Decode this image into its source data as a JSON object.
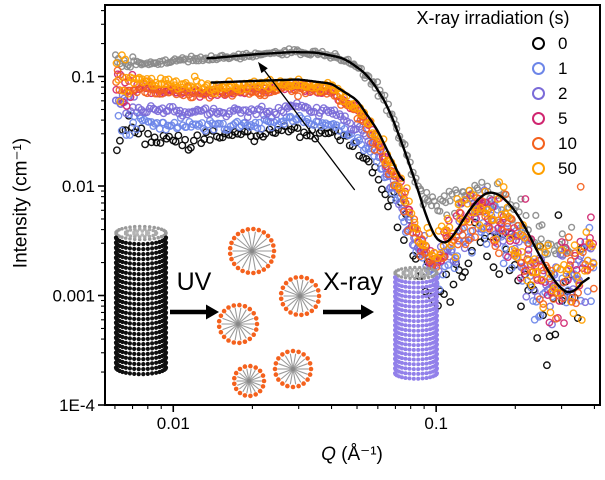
{
  "figure": {
    "xlabel_q": "Q",
    "xlabel_unit": " (Å⁻¹)",
    "ylabel": "Intensity (cm⁻¹)"
  },
  "legend": {
    "title": "X-ray irradiation (s)",
    "entries": [
      {
        "label": "0",
        "color": "#000000"
      },
      {
        "label": "1",
        "color": "#6d86e8"
      },
      {
        "label": "2",
        "color": "#7b6bd8"
      },
      {
        "label": "5",
        "color": "#d02670"
      },
      {
        "label": "10",
        "color": "#f4611d"
      },
      {
        "label": "50",
        "color": "#ffa000"
      }
    ]
  },
  "inset": {
    "uv_label": "UV",
    "xray_label": "X-ray",
    "icons": [
      "nanotube-black",
      "uv-arrow",
      "micelles",
      "xray-arrow",
      "nanotube-purple"
    ]
  },
  "chart_data": {
    "type": "scatter",
    "title": "",
    "xlabel": "Q (Å⁻¹)",
    "ylabel": "Intensity (cm⁻¹)",
    "x_scale": "log",
    "y_scale": "log",
    "xlim": [
      0.0055,
      0.42
    ],
    "ylim": [
      0.0001,
      0.45
    ],
    "grid": false,
    "legend_position": "top-right",
    "x_ticks": [
      {
        "value": 0.01,
        "label": "0.01"
      },
      {
        "value": 0.1,
        "label": "0.1"
      }
    ],
    "y_ticks": [
      {
        "value": 0.1,
        "label": "0.1"
      },
      {
        "value": 0.01,
        "label": "0.01"
      },
      {
        "value": 0.001,
        "label": "0.001"
      },
      {
        "value": 0.0001,
        "label": "1E-4"
      }
    ],
    "series": [
      {
        "name": "gray",
        "label": "",
        "color": "#8a8a8a",
        "r": 2.9,
        "n": 280,
        "noise": 0.6,
        "anchors": [
          [
            0.006,
            0.13
          ],
          [
            0.008,
            0.133
          ],
          [
            0.01,
            0.137
          ],
          [
            0.015,
            0.148
          ],
          [
            0.02,
            0.158
          ],
          [
            0.025,
            0.165
          ],
          [
            0.03,
            0.168
          ],
          [
            0.035,
            0.165
          ],
          [
            0.04,
            0.155
          ],
          [
            0.05,
            0.125
          ],
          [
            0.06,
            0.08
          ],
          [
            0.07,
            0.038
          ],
          [
            0.08,
            0.015
          ],
          [
            0.09,
            0.0075
          ],
          [
            0.1,
            0.007
          ],
          [
            0.11,
            0.0075
          ],
          [
            0.13,
            0.0085
          ],
          [
            0.15,
            0.0088
          ],
          [
            0.17,
            0.008
          ],
          [
            0.2,
            0.0058
          ],
          [
            0.24,
            0.0035
          ],
          [
            0.28,
            0.0028
          ],
          [
            0.33,
            0.0035
          ]
        ]
      },
      {
        "name": "0",
        "label": "0",
        "color": "#000000",
        "r": 3.2,
        "n": 150,
        "noise": 1.7,
        "anchors": [
          [
            0.006,
            0.03
          ],
          [
            0.008,
            0.028
          ],
          [
            0.01,
            0.027
          ],
          [
            0.015,
            0.028
          ],
          [
            0.02,
            0.03
          ],
          [
            0.03,
            0.033
          ],
          [
            0.04,
            0.03
          ],
          [
            0.05,
            0.022
          ],
          [
            0.06,
            0.013
          ],
          [
            0.07,
            0.0065
          ],
          [
            0.08,
            0.0028
          ],
          [
            0.09,
            0.0012
          ],
          [
            0.1,
            0.00075
          ],
          [
            0.11,
            0.0012
          ],
          [
            0.13,
            0.003
          ],
          [
            0.15,
            0.004
          ],
          [
            0.17,
            0.0035
          ],
          [
            0.2,
            0.002
          ],
          [
            0.24,
            0.001
          ],
          [
            0.28,
            0.00085
          ],
          [
            0.36,
            0.0012
          ]
        ]
      },
      {
        "name": "1",
        "label": "1",
        "color": "#6d86e8",
        "r": 3.2,
        "n": 230,
        "noise": 1.0,
        "anchors": [
          [
            0.006,
            0.04
          ],
          [
            0.01,
            0.036
          ],
          [
            0.015,
            0.035
          ],
          [
            0.02,
            0.037
          ],
          [
            0.03,
            0.04
          ],
          [
            0.04,
            0.037
          ],
          [
            0.05,
            0.028
          ],
          [
            0.06,
            0.016
          ],
          [
            0.07,
            0.008
          ],
          [
            0.08,
            0.0035
          ],
          [
            0.09,
            0.0018
          ],
          [
            0.1,
            0.0014
          ],
          [
            0.11,
            0.002
          ],
          [
            0.13,
            0.0042
          ],
          [
            0.15,
            0.0052
          ],
          [
            0.17,
            0.0045
          ],
          [
            0.2,
            0.0026
          ],
          [
            0.24,
            0.0012
          ],
          [
            0.28,
            0.001
          ],
          [
            0.4,
            0.0018
          ]
        ]
      },
      {
        "name": "2",
        "label": "2",
        "color": "#7b6bd8",
        "r": 3.2,
        "n": 230,
        "noise": 1.0,
        "anchors": [
          [
            0.006,
            0.055
          ],
          [
            0.01,
            0.048
          ],
          [
            0.015,
            0.046
          ],
          [
            0.02,
            0.048
          ],
          [
            0.03,
            0.052
          ],
          [
            0.04,
            0.048
          ],
          [
            0.05,
            0.035
          ],
          [
            0.06,
            0.02
          ],
          [
            0.07,
            0.0095
          ],
          [
            0.08,
            0.004
          ],
          [
            0.09,
            0.0022
          ],
          [
            0.1,
            0.0018
          ],
          [
            0.11,
            0.0026
          ],
          [
            0.13,
            0.005
          ],
          [
            0.15,
            0.006
          ],
          [
            0.17,
            0.0052
          ],
          [
            0.2,
            0.003
          ],
          [
            0.24,
            0.0014
          ],
          [
            0.28,
            0.0012
          ],
          [
            0.4,
            0.002
          ]
        ]
      },
      {
        "name": "5",
        "label": "5",
        "color": "#d02670",
        "r": 3.2,
        "n": 230,
        "noise": 1.0,
        "anchors": [
          [
            0.006,
            0.085
          ],
          [
            0.01,
            0.075
          ],
          [
            0.015,
            0.072
          ],
          [
            0.02,
            0.075
          ],
          [
            0.03,
            0.08
          ],
          [
            0.04,
            0.072
          ],
          [
            0.05,
            0.05
          ],
          [
            0.06,
            0.026
          ],
          [
            0.07,
            0.012
          ],
          [
            0.08,
            0.005
          ],
          [
            0.09,
            0.0028
          ],
          [
            0.1,
            0.0022
          ],
          [
            0.11,
            0.0032
          ],
          [
            0.13,
            0.0058
          ],
          [
            0.15,
            0.0068
          ],
          [
            0.17,
            0.0058
          ],
          [
            0.2,
            0.0033
          ],
          [
            0.24,
            0.0016
          ],
          [
            0.28,
            0.0013
          ],
          [
            0.4,
            0.0022
          ]
        ]
      },
      {
        "name": "10",
        "label": "10",
        "color": "#f4611d",
        "r": 3.2,
        "n": 230,
        "noise": 1.05,
        "anchors": [
          [
            0.006,
            0.08
          ],
          [
            0.01,
            0.072
          ],
          [
            0.015,
            0.07
          ],
          [
            0.02,
            0.073
          ],
          [
            0.03,
            0.078
          ],
          [
            0.04,
            0.07
          ],
          [
            0.05,
            0.048
          ],
          [
            0.06,
            0.025
          ],
          [
            0.07,
            0.0115
          ],
          [
            0.08,
            0.0048
          ],
          [
            0.09,
            0.0026
          ],
          [
            0.1,
            0.0021
          ],
          [
            0.11,
            0.003
          ],
          [
            0.13,
            0.0055
          ],
          [
            0.15,
            0.0065
          ],
          [
            0.17,
            0.0056
          ],
          [
            0.2,
            0.0032
          ],
          [
            0.24,
            0.0015
          ],
          [
            0.28,
            0.0012
          ],
          [
            0.4,
            0.0021
          ]
        ]
      },
      {
        "name": "50",
        "label": "50",
        "color": "#ffa000",
        "r": 3.2,
        "n": 260,
        "noise": 1.1,
        "anchors": [
          [
            0.006,
            0.095
          ],
          [
            0.01,
            0.085
          ],
          [
            0.015,
            0.08
          ],
          [
            0.02,
            0.082
          ],
          [
            0.03,
            0.086
          ],
          [
            0.04,
            0.078
          ],
          [
            0.05,
            0.054
          ],
          [
            0.06,
            0.028
          ],
          [
            0.07,
            0.013
          ],
          [
            0.08,
            0.0055
          ],
          [
            0.09,
            0.003
          ],
          [
            0.1,
            0.0024
          ],
          [
            0.11,
            0.0034
          ],
          [
            0.13,
            0.006
          ],
          [
            0.15,
            0.007
          ],
          [
            0.17,
            0.006
          ],
          [
            0.2,
            0.0035
          ],
          [
            0.24,
            0.0017
          ],
          [
            0.28,
            0.0014
          ],
          [
            0.4,
            0.0024
          ]
        ]
      }
    ],
    "fit_lines": [
      {
        "name": "fit-gray",
        "color": "#000000",
        "anchors": [
          [
            0.0135,
            0.146
          ],
          [
            0.02,
            0.159
          ],
          [
            0.028,
            0.167
          ],
          [
            0.035,
            0.166
          ],
          [
            0.045,
            0.146
          ],
          [
            0.055,
            0.103
          ],
          [
            0.065,
            0.056
          ],
          [
            0.075,
            0.023
          ],
          [
            0.085,
            0.0095
          ],
          [
            0.095,
            0.004
          ],
          [
            0.105,
            0.0028
          ],
          [
            0.115,
            0.0033
          ],
          [
            0.13,
            0.0055
          ],
          [
            0.15,
            0.0085
          ],
          [
            0.165,
            0.009
          ],
          [
            0.185,
            0.0075
          ],
          [
            0.21,
            0.005
          ],
          [
            0.25,
            0.0022
          ],
          [
            0.29,
            0.0012
          ],
          [
            0.33,
            0.001
          ],
          [
            0.38,
            0.0016
          ]
        ]
      },
      {
        "name": "fit-colored",
        "color": "#000000",
        "anchors": [
          [
            0.014,
            0.088
          ],
          [
            0.02,
            0.091
          ],
          [
            0.03,
            0.094
          ],
          [
            0.04,
            0.086
          ],
          [
            0.05,
            0.061
          ],
          [
            0.06,
            0.032
          ],
          [
            0.07,
            0.0148
          ],
          [
            0.075,
            0.0105
          ]
        ]
      }
    ],
    "annotation_arrow": {
      "from": [
        0.049,
        0.0092
      ],
      "to": [
        0.021,
        0.136
      ]
    }
  }
}
